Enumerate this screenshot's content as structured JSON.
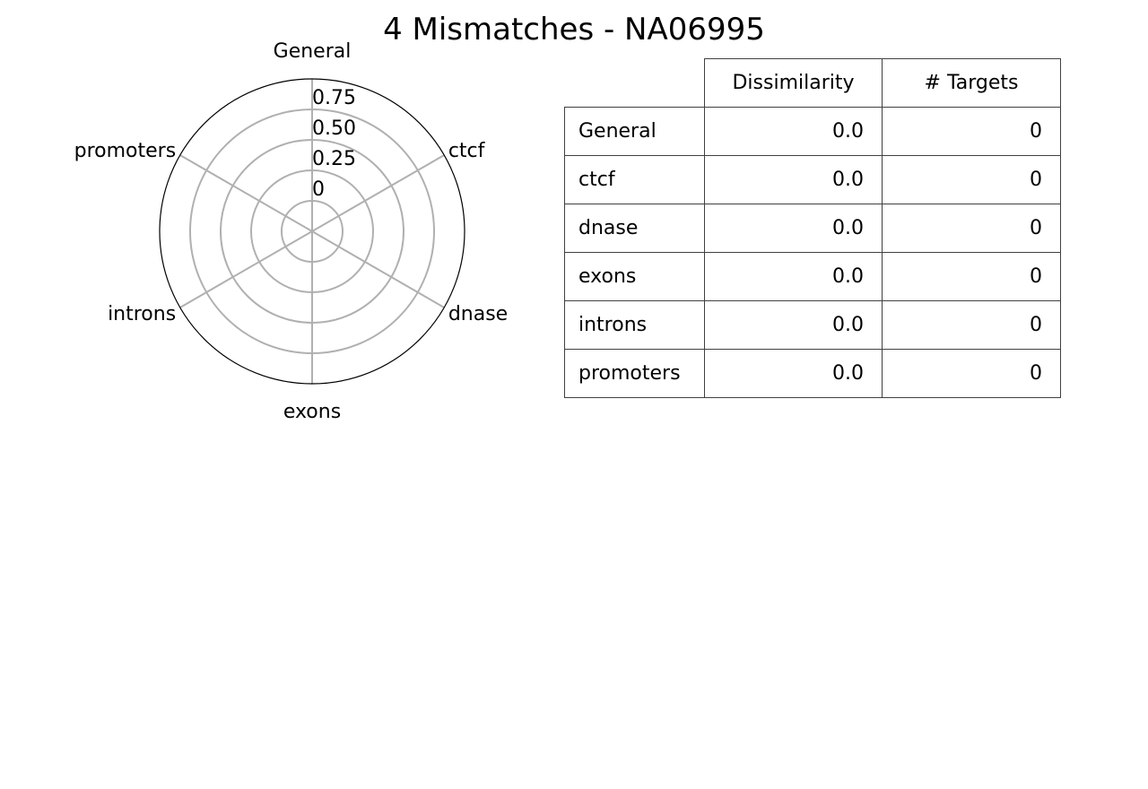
{
  "title": "4 Mismatches - NA06995",
  "chart_data": [
    {
      "type": "radar",
      "axes": [
        "General",
        "ctcf",
        "dnase",
        "exons",
        "introns",
        "promoters"
      ],
      "values": [
        0,
        0,
        0,
        0,
        0,
        0
      ],
      "radial_ticks": [
        "0",
        "0.25",
        "0.50",
        "0.75"
      ],
      "radial_tick_values": [
        0,
        0.25,
        0.5,
        0.75
      ],
      "rlim": [
        -0.25,
        1.0
      ],
      "grid": true
    },
    {
      "type": "table",
      "columns": [
        "Dissimilarity",
        "# Targets"
      ],
      "rows": [
        {
          "label": "General",
          "dissimilarity": "0.0",
          "targets": "0"
        },
        {
          "label": "ctcf",
          "dissimilarity": "0.0",
          "targets": "0"
        },
        {
          "label": "dnase",
          "dissimilarity": "0.0",
          "targets": "0"
        },
        {
          "label": "exons",
          "dissimilarity": "0.0",
          "targets": "0"
        },
        {
          "label": "introns",
          "dissimilarity": "0.0",
          "targets": "0"
        },
        {
          "label": "promoters",
          "dissimilarity": "0.0",
          "targets": "0"
        }
      ]
    }
  ]
}
